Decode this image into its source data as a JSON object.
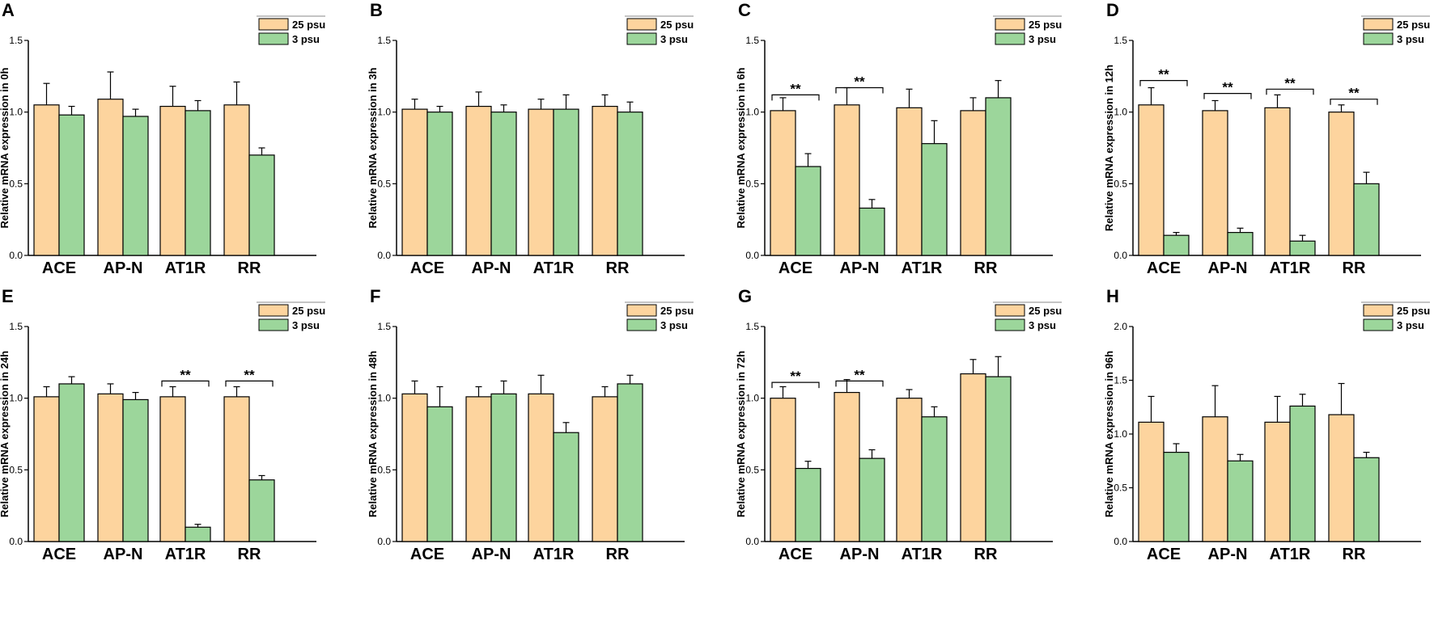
{
  "chart_data": [
    {
      "type": "bar",
      "panel": "A",
      "ylabel": "Relative mRNA expression in 0h",
      "ylim": [
        0,
        1.5
      ],
      "yticks": [
        "0.0",
        "0.5",
        "1.0",
        "1.5"
      ],
      "categories": [
        "ACE",
        "AP-N",
        "AT1R",
        "RR"
      ],
      "series": [
        {
          "name": "25 psu",
          "color": "#fdd49e",
          "values": [
            1.05,
            1.09,
            1.04,
            1.05
          ],
          "errors": [
            0.15,
            0.19,
            0.14,
            0.16
          ]
        },
        {
          "name": "3 psu",
          "color": "#9cd69b",
          "values": [
            0.98,
            0.97,
            1.01,
            0.7
          ],
          "errors": [
            0.06,
            0.05,
            0.07,
            0.05
          ]
        }
      ],
      "significance": []
    },
    {
      "type": "bar",
      "panel": "B",
      "ylabel": "Relative mRNA expression in 3h",
      "ylim": [
        0,
        1.5
      ],
      "yticks": [
        "0.0",
        "0.5",
        "1.0",
        "1.5"
      ],
      "categories": [
        "ACE",
        "AP-N",
        "AT1R",
        "RR"
      ],
      "series": [
        {
          "name": "25 psu",
          "color": "#fdd49e",
          "values": [
            1.02,
            1.04,
            1.02,
            1.04
          ],
          "errors": [
            0.07,
            0.1,
            0.07,
            0.08
          ]
        },
        {
          "name": "3 psu",
          "color": "#9cd69b",
          "values": [
            1.0,
            1.0,
            1.02,
            1.0
          ],
          "errors": [
            0.04,
            0.05,
            0.1,
            0.07
          ]
        }
      ],
      "significance": []
    },
    {
      "type": "bar",
      "panel": "C",
      "ylabel": "Relative mRNA expression in 6h",
      "ylim": [
        0,
        1.5
      ],
      "yticks": [
        "0.0",
        "0.5",
        "1.0",
        "1.5"
      ],
      "categories": [
        "ACE",
        "AP-N",
        "AT1R",
        "RR"
      ],
      "series": [
        {
          "name": "25 psu",
          "color": "#fdd49e",
          "values": [
            1.01,
            1.05,
            1.03,
            1.01
          ],
          "errors": [
            0.09,
            0.12,
            0.13,
            0.09
          ]
        },
        {
          "name": "3 psu",
          "color": "#9cd69b",
          "values": [
            0.62,
            0.33,
            0.78,
            1.1
          ],
          "errors": [
            0.09,
            0.06,
            0.16,
            0.12
          ]
        }
      ],
      "significance": [
        {
          "group": 0,
          "label": "**",
          "level": 1.12
        },
        {
          "group": 1,
          "label": "**",
          "level": 1.17
        }
      ]
    },
    {
      "type": "bar",
      "panel": "D",
      "ylabel": "Relative mRNA expression in 12h",
      "ylim": [
        0,
        1.5
      ],
      "yticks": [
        "0.0",
        "0.5",
        "1.0",
        "1.5"
      ],
      "categories": [
        "ACE",
        "AP-N",
        "AT1R",
        "RR"
      ],
      "series": [
        {
          "name": "25 psu",
          "color": "#fdd49e",
          "values": [
            1.05,
            1.01,
            1.03,
            1.0
          ],
          "errors": [
            0.12,
            0.07,
            0.09,
            0.05
          ]
        },
        {
          "name": "3 psu",
          "color": "#9cd69b",
          "values": [
            0.14,
            0.16,
            0.1,
            0.5
          ],
          "errors": [
            0.02,
            0.03,
            0.04,
            0.08
          ]
        }
      ],
      "significance": [
        {
          "group": 0,
          "label": "**",
          "level": 1.22
        },
        {
          "group": 1,
          "label": "**",
          "level": 1.13
        },
        {
          "group": 2,
          "label": "**",
          "level": 1.16
        },
        {
          "group": 3,
          "label": "**",
          "level": 1.09
        }
      ]
    },
    {
      "type": "bar",
      "panel": "E",
      "ylabel": "Relative mRNA expression in 24h",
      "ylim": [
        0,
        1.5
      ],
      "yticks": [
        "0.0",
        "0.5",
        "1.0",
        "1.5"
      ],
      "categories": [
        "ACE",
        "AP-N",
        "AT1R",
        "RR"
      ],
      "series": [
        {
          "name": "25 psu",
          "color": "#fdd49e",
          "values": [
            1.01,
            1.03,
            1.01,
            1.01
          ],
          "errors": [
            0.07,
            0.07,
            0.07,
            0.07
          ]
        },
        {
          "name": "3 psu",
          "color": "#9cd69b",
          "values": [
            1.1,
            0.99,
            0.1,
            0.43
          ],
          "errors": [
            0.05,
            0.05,
            0.02,
            0.03
          ]
        }
      ],
      "significance": [
        {
          "group": 2,
          "label": "**",
          "level": 1.12
        },
        {
          "group": 3,
          "label": "**",
          "level": 1.12
        }
      ]
    },
    {
      "type": "bar",
      "panel": "F",
      "ylabel": "Relative mRNA expression in 48h",
      "ylim": [
        0,
        1.5
      ],
      "yticks": [
        "0.0",
        "0.5",
        "1.0",
        "1.5"
      ],
      "categories": [
        "ACE",
        "AP-N",
        "AT1R",
        "RR"
      ],
      "series": [
        {
          "name": "25 psu",
          "color": "#fdd49e",
          "values": [
            1.03,
            1.01,
            1.03,
            1.01
          ],
          "errors": [
            0.09,
            0.07,
            0.13,
            0.07
          ]
        },
        {
          "name": "3 psu",
          "color": "#9cd69b",
          "values": [
            0.94,
            1.03,
            0.76,
            1.1
          ],
          "errors": [
            0.14,
            0.09,
            0.07,
            0.06
          ]
        }
      ],
      "significance": []
    },
    {
      "type": "bar",
      "panel": "G",
      "ylabel": "Relative mRNA expression in 72h",
      "ylim": [
        0,
        1.5
      ],
      "yticks": [
        "0.0",
        "0.5",
        "1.0",
        "1.5"
      ],
      "categories": [
        "ACE",
        "AP-N",
        "AT1R",
        "RR"
      ],
      "series": [
        {
          "name": "25 psu",
          "color": "#fdd49e",
          "values": [
            1.0,
            1.04,
            1.0,
            1.17
          ],
          "errors": [
            0.08,
            0.09,
            0.06,
            0.1
          ]
        },
        {
          "name": "3 psu",
          "color": "#9cd69b",
          "values": [
            0.51,
            0.58,
            0.87,
            1.15
          ],
          "errors": [
            0.05,
            0.06,
            0.07,
            0.14
          ]
        }
      ],
      "significance": [
        {
          "group": 0,
          "label": "**",
          "level": 1.11
        },
        {
          "group": 1,
          "label": "**",
          "level": 1.12
        }
      ]
    },
    {
      "type": "bar",
      "panel": "H",
      "ylabel": "Relative mRNA expression in 96h",
      "ylim": [
        0,
        2.0
      ],
      "yticks": [
        "0.0",
        "0.5",
        "1.0",
        "1.5",
        "2.0"
      ],
      "categories": [
        "ACE",
        "AP-N",
        "AT1R",
        "RR"
      ],
      "series": [
        {
          "name": "25 psu",
          "color": "#fdd49e",
          "values": [
            1.11,
            1.16,
            1.11,
            1.18
          ],
          "errors": [
            0.24,
            0.29,
            0.24,
            0.29
          ]
        },
        {
          "name": "3 psu",
          "color": "#9cd69b",
          "values": [
            0.83,
            0.75,
            1.26,
            0.78
          ],
          "errors": [
            0.08,
            0.06,
            0.11,
            0.05
          ]
        }
      ],
      "significance": []
    }
  ]
}
